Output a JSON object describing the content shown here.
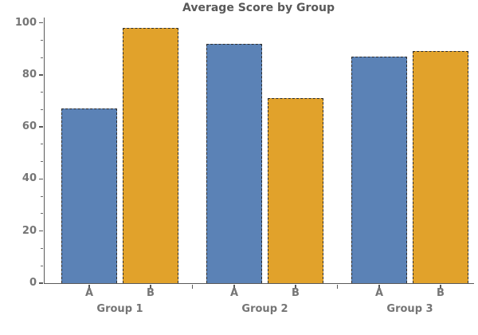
{
  "chart_data": {
    "type": "bar",
    "title": "Average Score by Group",
    "categories": [
      "Group 1",
      "Group 2",
      "Group 3"
    ],
    "bar_labels": [
      "A",
      "B"
    ],
    "series": [
      {
        "name": "A",
        "values": [
          67,
          92,
          87
        ],
        "color": "#5b82b6"
      },
      {
        "name": "B",
        "values": [
          98,
          71,
          89
        ],
        "color": "#e1a22b"
      }
    ],
    "ylabel": "",
    "xlabel": "",
    "yticks": [
      0,
      20,
      40,
      60,
      80,
      100
    ],
    "ylim": [
      0,
      102
    ],
    "grid": false,
    "legend": "none",
    "bar_edge_style": "dashed",
    "colors": {
      "series_a": "#5b82b6",
      "series_b": "#e1a22b",
      "bar_edge": "#2d2d2d",
      "spine": "#5a5a5a",
      "tick_label": "#757575",
      "title": "#595959",
      "background": "#ffffff"
    }
  }
}
